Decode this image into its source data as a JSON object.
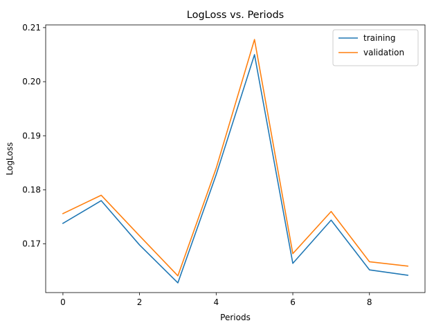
{
  "chart_data": {
    "type": "line",
    "title": "LogLoss vs. Periods",
    "xlabel": "Periods",
    "ylabel": "LogLoss",
    "xlim": [
      -0.45,
      9.45
    ],
    "ylim": [
      0.161,
      0.2105
    ],
    "xticks": [
      0,
      2,
      4,
      6,
      8
    ],
    "xtick_labels": [
      "0",
      "2",
      "4",
      "6",
      "8"
    ],
    "yticks": [
      0.17,
      0.18,
      0.19,
      0.2,
      0.21
    ],
    "ytick_labels": [
      "0.17",
      "0.18",
      "0.19",
      "0.20",
      "0.21"
    ],
    "grid": false,
    "legend_position": "top-right",
    "x": [
      0,
      1,
      2,
      3,
      4,
      5,
      6,
      7,
      8,
      9
    ],
    "series": [
      {
        "name": "training",
        "color": "#1f77b4",
        "values": [
          0.1738,
          0.178,
          0.1698,
          0.1628,
          0.1828,
          0.205,
          0.1664,
          0.1744,
          0.1652,
          0.1642
        ]
      },
      {
        "name": "validation",
        "color": "#ff7f0e",
        "values": [
          0.1756,
          0.179,
          0.1715,
          0.1641,
          0.184,
          0.2078,
          0.1682,
          0.176,
          0.1667,
          0.1659
        ]
      }
    ]
  }
}
